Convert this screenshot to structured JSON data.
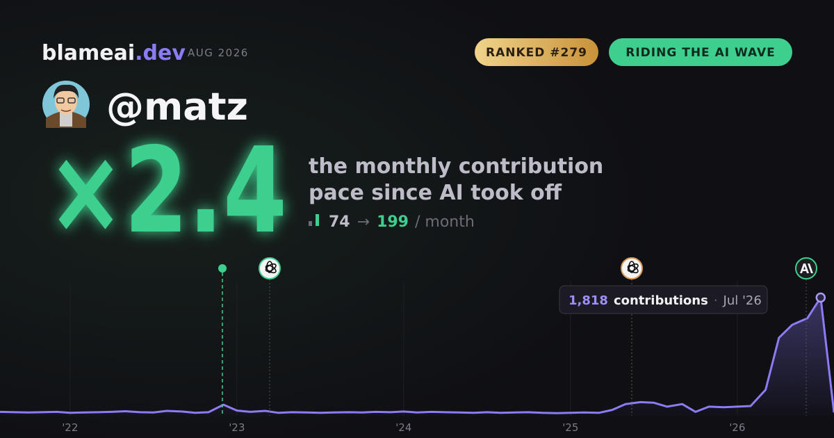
{
  "header": {
    "brand": "blameai",
    "brand_tld": ".dev",
    "period": "AUG 2026",
    "badges": [
      "RANKED #279",
      "RIDING THE AI WAVE"
    ],
    "handle": "@matz"
  },
  "headline": {
    "multiplier": "×2.4",
    "caption": [
      "the monthly contribution",
      "pace since AI took off"
    ],
    "before": 74,
    "arrow": "→",
    "after": 199,
    "unit": "/ month"
  },
  "chart_data": {
    "type": "line",
    "color": "#8b7cf6",
    "grid": true,
    "x": [
      2021.58,
      2021.67,
      2021.75,
      2021.83,
      2021.92,
      2022.0,
      2022.08,
      2022.17,
      2022.25,
      2022.33,
      2022.42,
      2022.5,
      2022.58,
      2022.67,
      2022.75,
      2022.83,
      2022.92,
      2023.0,
      2023.08,
      2023.17,
      2023.25,
      2023.33,
      2023.42,
      2023.5,
      2023.58,
      2023.67,
      2023.75,
      2023.83,
      2023.92,
      2024.0,
      2024.08,
      2024.17,
      2024.25,
      2024.33,
      2024.42,
      2024.5,
      2024.58,
      2024.67,
      2024.75,
      2024.83,
      2024.92,
      2025.0,
      2025.08,
      2025.17,
      2025.25,
      2025.33,
      2025.42,
      2025.5,
      2025.58,
      2025.67,
      2025.75,
      2025.83,
      2025.92,
      2026.0,
      2026.08,
      2026.17,
      2026.25,
      2026.33,
      2026.42,
      2026.5,
      2026.58
    ],
    "values": [
      60,
      55,
      50,
      55,
      60,
      45,
      50,
      55,
      60,
      70,
      55,
      50,
      75,
      65,
      45,
      55,
      170,
      80,
      60,
      75,
      45,
      55,
      50,
      45,
      50,
      55,
      50,
      60,
      55,
      65,
      50,
      60,
      55,
      50,
      45,
      55,
      45,
      50,
      55,
      45,
      40,
      45,
      50,
      45,
      90,
      180,
      210,
      200,
      140,
      180,
      60,
      140,
      130,
      140,
      150,
      400,
      1200,
      1400,
      1500,
      1818,
      50
    ],
    "xlim": [
      2021.58,
      2026.58
    ],
    "ylim": [
      0,
      2000
    ],
    "xticks": [
      {
        "value": 2022,
        "label": "'22"
      },
      {
        "value": 2023,
        "label": "'23"
      },
      {
        "value": 2024,
        "label": "'24"
      },
      {
        "value": 2025,
        "label": "'25"
      },
      {
        "value": 2026,
        "label": "'26"
      }
    ],
    "tooltip": {
      "value_label": "1,818",
      "label": "contributions",
      "separator": "·",
      "date": "Jul '26"
    }
  }
}
